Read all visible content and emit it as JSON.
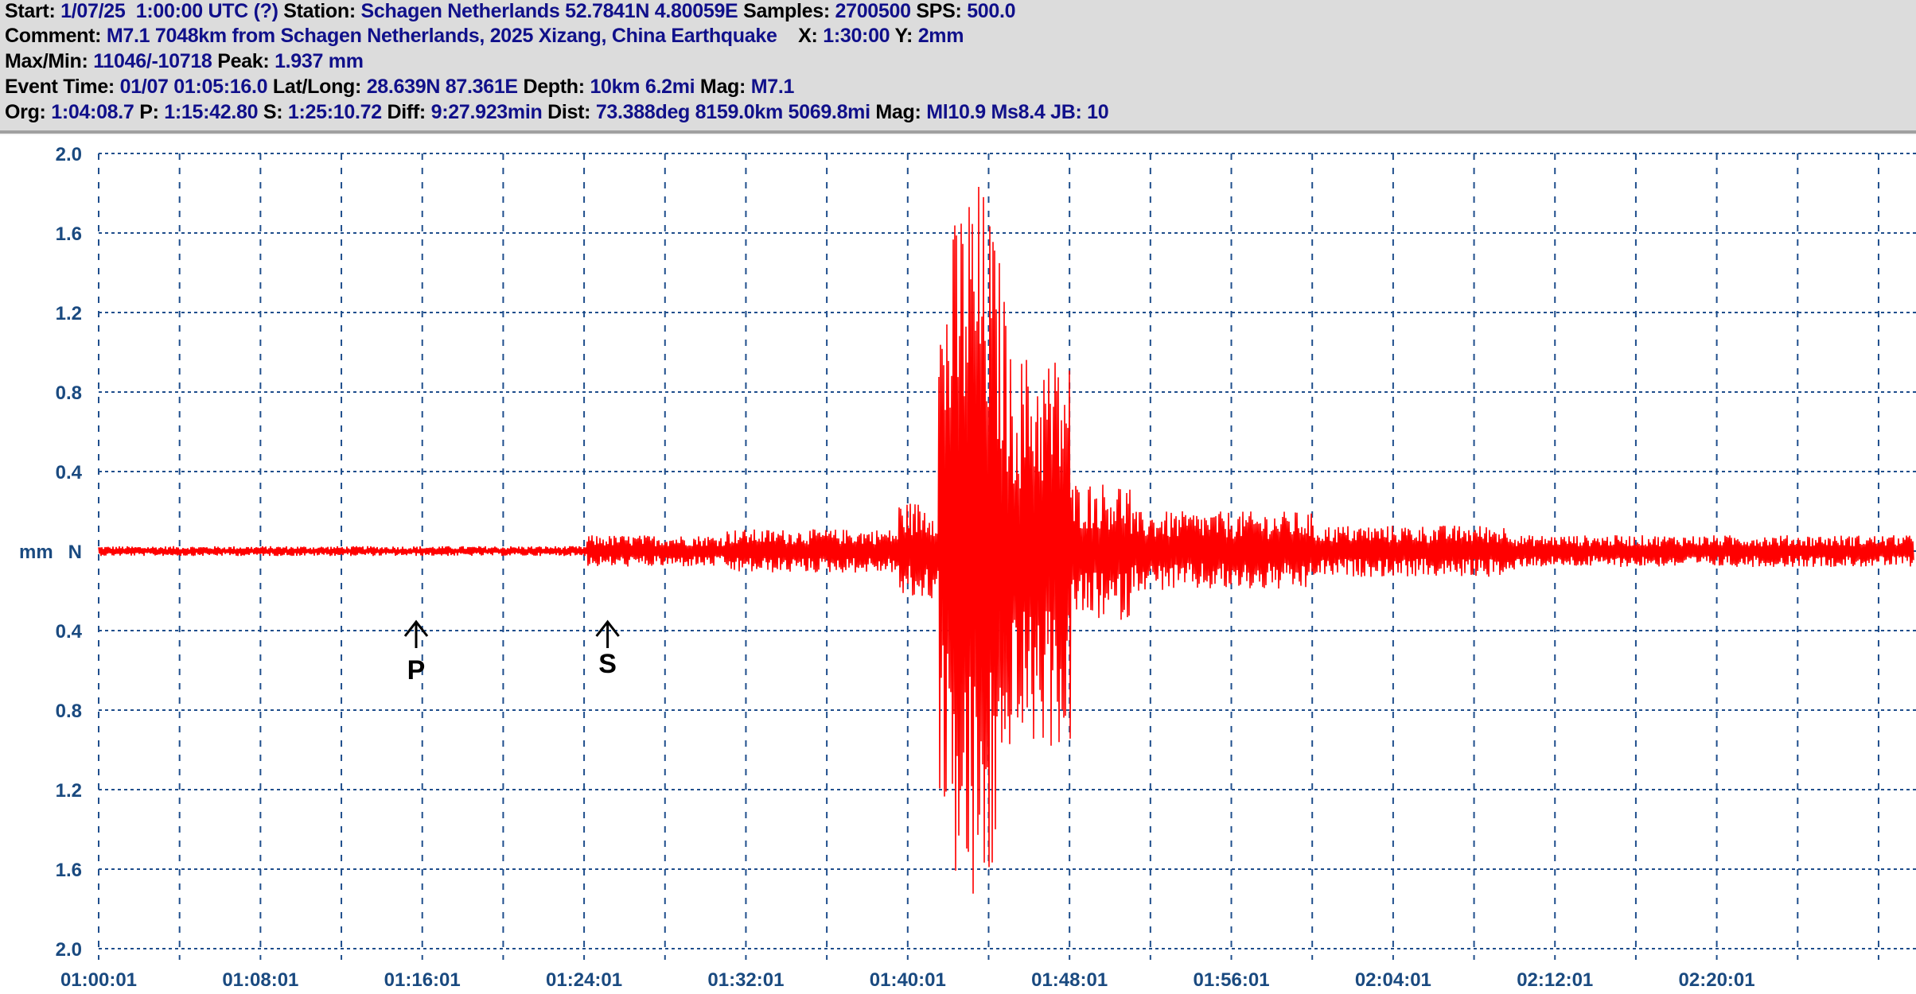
{
  "header": {
    "row1": [
      {
        "label": "Start:",
        "value": "1/07/25  1:00:00 UTC (?)"
      },
      {
        "label": "Station:",
        "value": "Schagen Netherlands 52.7841N 4.80059E"
      },
      {
        "label": "Samples:",
        "value": "2700500"
      },
      {
        "label": "SPS:",
        "value": "500.0"
      }
    ],
    "row2": [
      {
        "label": "Comment:",
        "value": "M7.1 7048km from Schagen Netherlands, 2025 Xizang, China Earthquake"
      },
      {
        "label": "X:",
        "value": "1:30:00"
      },
      {
        "label": "Y:",
        "value": "2mm"
      }
    ],
    "row3": [
      {
        "label": "Max/Min:",
        "value": "11046/-10718"
      },
      {
        "label": "Peak:",
        "value": "1.937 mm"
      }
    ],
    "row4": [
      {
        "label": "Event Time:",
        "value": "01/07 01:05:16.0"
      },
      {
        "label": "Lat/Long:",
        "value": "28.639N 87.361E"
      },
      {
        "label": "Depth:",
        "value": "10km 6.2mi"
      },
      {
        "label": "Mag:",
        "value": "M7.1"
      }
    ],
    "row5": [
      {
        "label": "Org:",
        "value": "1:04:08.7"
      },
      {
        "label": "P:",
        "value": "1:15:42.80"
      },
      {
        "label": "S:",
        "value": "1:25:10.72"
      },
      {
        "label": "Diff:",
        "value": "9:27.923min"
      },
      {
        "label": "Dist:",
        "value": "73.388deg 8159.0km 5069.8mi"
      },
      {
        "label": "Mag:",
        "value": "Ml10.9 Ms8.4 JB: 10"
      }
    ]
  },
  "chart_data": {
    "type": "line",
    "ylabel": "mm",
    "ylim": [
      -2.0,
      2.0
    ],
    "yticks": [
      2.0,
      1.6,
      1.2,
      0.8,
      0.4,
      0,
      -0.4,
      -0.8,
      -1.2,
      -1.6,
      -2.0
    ],
    "ytick_labels": [
      "2.0",
      "1.6",
      "1.2",
      "0.8",
      "0.4",
      "N",
      "0.4",
      "0.8",
      "1.2",
      "1.6",
      "2.0"
    ],
    "xtick_labels": [
      "01:00:01",
      "01:08:01",
      "01:16:01",
      "01:24:01",
      "01:32:01",
      "01:40:01",
      "01:48:01",
      "01:56:01",
      "02:04:01",
      "02:12:01",
      "02:20:01"
    ],
    "grid": true,
    "grid_minutes": 4,
    "peak_mm": 1.937,
    "annotations": [
      {
        "label": "P",
        "time": "1:15:42.80"
      },
      {
        "label": "S",
        "time": "1:25:10.72"
      }
    ],
    "colors": {
      "trace": "#ff0000",
      "grid": "#1f4e8c",
      "ticks": "#1a4a80",
      "header_bg": "#dcdcdc",
      "header_value": "#10108a"
    }
  }
}
